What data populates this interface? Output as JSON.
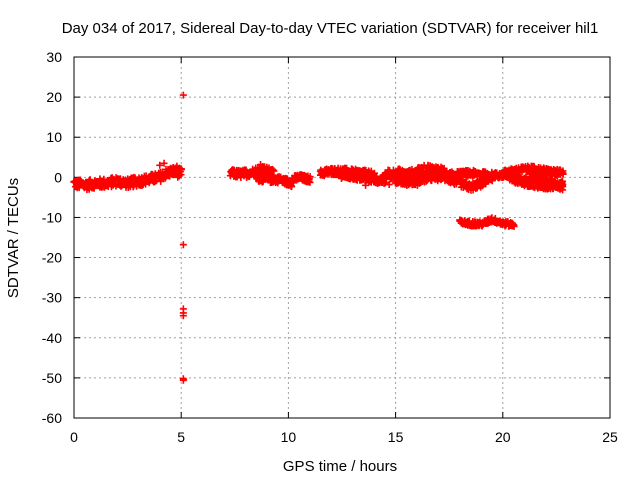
{
  "chart_data": {
    "type": "scatter",
    "title": "Day 034 of 2017, Sidereal Day-to-day VTEC variation (SDTVAR) for receiver hil1",
    "xlabel": "GPS time / hours",
    "ylabel": "SDTVAR / TECUs",
    "xlim": [
      0,
      25
    ],
    "ylim": [
      -60,
      30
    ],
    "xticks": [
      0,
      5,
      10,
      15,
      20,
      25
    ],
    "yticks": [
      30,
      20,
      10,
      0,
      -10,
      -20,
      -30,
      -40,
      -50,
      -60
    ],
    "xtick_labels": [
      "0",
      "5",
      "10",
      "15",
      "20",
      "25"
    ],
    "ytick_labels": [
      "30",
      "20",
      "10",
      "0",
      "-10",
      "-20",
      "-30",
      "-40",
      "-50",
      "-60"
    ],
    "grid": true,
    "marker": "+",
    "series": [
      {
        "name": "SDTVAR",
        "color": "#ff0000",
        "segments": [
          {
            "x0": 0.0,
            "x1": 5.0,
            "step": 0.05,
            "yCenter": [
              [
                0,
                -1.5
              ],
              [
                0.5,
                -2
              ],
              [
                1,
                -1.5
              ],
              [
                1.5,
                -1.5
              ],
              [
                2,
                -1
              ],
              [
                2.5,
                -1.5
              ],
              [
                3,
                -1
              ],
              [
                3.5,
                -0.5
              ],
              [
                4,
                0
              ],
              [
                4.3,
                1
              ],
              [
                4.6,
                1.5
              ],
              [
                5.0,
                1
              ]
            ],
            "spread": 1.2
          },
          {
            "x0": 7.3,
            "x1": 9.3,
            "step": 0.05,
            "yCenter": [
              [
                7.3,
                1
              ],
              [
                7.8,
                0.8
              ],
              [
                8.3,
                1.2
              ],
              [
                8.8,
                2
              ],
              [
                9.3,
                1
              ]
            ],
            "spread": 1.0
          },
          {
            "x0": 8.5,
            "x1": 10.2,
            "step": 0.05,
            "yCenter": [
              [
                8.5,
                0
              ],
              [
                9.0,
                -0.5
              ],
              [
                9.5,
                -0.5
              ],
              [
                10.2,
                -1.5
              ]
            ],
            "spread": 0.9
          },
          {
            "x0": 10.2,
            "x1": 11.0,
            "step": 0.05,
            "yCenter": [
              [
                10.2,
                -0.5
              ],
              [
                10.5,
                0
              ],
              [
                11.0,
                -0.5
              ]
            ],
            "spread": 0.8
          },
          {
            "x0": 11.5,
            "x1": 14.0,
            "step": 0.05,
            "yCenter": [
              [
                11.5,
                1
              ],
              [
                12.0,
                1.5
              ],
              [
                12.5,
                1.5
              ],
              [
                13.0,
                1.2
              ],
              [
                13.5,
                1
              ],
              [
                14.0,
                0.5
              ]
            ],
            "spread": 0.9
          },
          {
            "x0": 12.5,
            "x1": 14.5,
            "step": 0.05,
            "yCenter": [
              [
                12.5,
                0.5
              ],
              [
                13.2,
                0
              ],
              [
                13.8,
                -0.5
              ],
              [
                14.5,
                -1
              ]
            ],
            "spread": 0.8
          },
          {
            "x0": 14.5,
            "x1": 17.5,
            "step": 0.05,
            "yCenter": [
              [
                14.5,
                0.5
              ],
              [
                15.0,
                1
              ],
              [
                15.5,
                0.5
              ],
              [
                16.0,
                1
              ],
              [
                16.5,
                2
              ],
              [
                17.0,
                1.5
              ],
              [
                17.5,
                0.5
              ]
            ],
            "spread": 1.3
          },
          {
            "x0": 15.0,
            "x1": 17.0,
            "step": 0.05,
            "yCenter": [
              [
                15.0,
                -0.5
              ],
              [
                15.5,
                -1
              ],
              [
                16.0,
                -1
              ],
              [
                16.5,
                0
              ],
              [
                17.0,
                0
              ]
            ],
            "spread": 1.0
          },
          {
            "x0": 17.0,
            "x1": 19.5,
            "step": 0.05,
            "yCenter": [
              [
                17.0,
                0.5
              ],
              [
                17.5,
                -0.5
              ],
              [
                18.0,
                -1.5
              ],
              [
                18.5,
                -2.5
              ],
              [
                19.0,
                -1.5
              ],
              [
                19.5,
                0
              ]
            ],
            "spread": 0.9
          },
          {
            "x0": 17.5,
            "x1": 20.3,
            "step": 0.05,
            "yCenter": [
              [
                17.5,
                0.5
              ],
              [
                18.5,
                1
              ],
              [
                19.5,
                0.5
              ],
              [
                20.3,
                0.5
              ]
            ],
            "spread": 0.8
          },
          {
            "x0": 18.0,
            "x1": 20.5,
            "step": 0.05,
            "yCenter": [
              [
                18.0,
                -11.2
              ],
              [
                18.5,
                -11.5
              ],
              [
                19.0,
                -11.7
              ],
              [
                19.5,
                -10.5
              ],
              [
                20.0,
                -11.5
              ],
              [
                20.5,
                -11.8
              ]
            ],
            "spread": 0.6
          },
          {
            "x0": 20.0,
            "x1": 22.8,
            "step": 0.05,
            "yCenter": [
              [
                20.0,
                1
              ],
              [
                20.5,
                1.5
              ],
              [
                21.0,
                2
              ],
              [
                21.5,
                2
              ],
              [
                22.0,
                1.5
              ],
              [
                22.8,
                1
              ]
            ],
            "spread": 0.8
          },
          {
            "x0": 20.5,
            "x1": 22.8,
            "step": 0.05,
            "yCenter": [
              [
                20.5,
                -0.5
              ],
              [
                21.0,
                -1
              ],
              [
                21.5,
                0.5
              ],
              [
                22.0,
                -0.5
              ],
              [
                22.8,
                -2.5
              ]
            ],
            "spread": 0.9
          },
          {
            "x0": 20.3,
            "x1": 22.8,
            "step": 0.05,
            "yCenter": [
              [
                20.3,
                0
              ],
              [
                21.0,
                -1.5
              ],
              [
                21.5,
                -2
              ],
              [
                22.2,
                -2.5
              ],
              [
                22.8,
                -1.5
              ]
            ],
            "spread": 0.6
          }
        ],
        "points": [
          {
            "x": 5.1,
            "y": 20.5
          },
          {
            "x": 5.1,
            "y": -16.8
          },
          {
            "x": 5.1,
            "y": -32.8
          },
          {
            "x": 5.1,
            "y": -33.8
          },
          {
            "x": 5.1,
            "y": -34.5
          },
          {
            "x": 5.1,
            "y": -50.2
          },
          {
            "x": 5.1,
            "y": -50.6
          },
          {
            "x": 4.2,
            "y": 3.5
          },
          {
            "x": 4.0,
            "y": 3.0
          },
          {
            "x": 4.8,
            "y": 2.8
          },
          {
            "x": 8.7,
            "y": 3.2
          },
          {
            "x": 14.7,
            "y": -1.8
          },
          {
            "x": 13.6,
            "y": -2.0
          }
        ]
      }
    ]
  }
}
